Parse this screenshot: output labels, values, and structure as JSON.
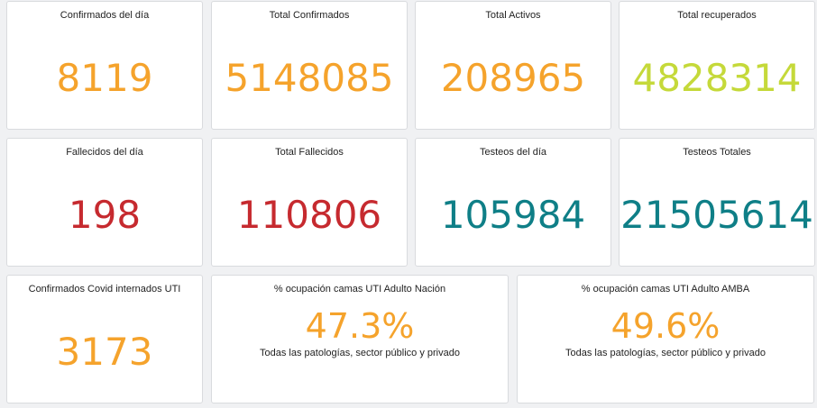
{
  "cards": [
    {
      "title": "Confirmados del día",
      "value": "8119",
      "color": "#f5a32c"
    },
    {
      "title": "Total Confirmados",
      "value": "5148085",
      "color": "#f5a32c"
    },
    {
      "title": "Total Activos",
      "value": "208965",
      "color": "#f5a32c"
    },
    {
      "title": "Total recuperados",
      "value": "4828314",
      "color": "#c5d93a"
    },
    {
      "title": "Fallecidos del día",
      "value": "198",
      "color": "#c62a2f"
    },
    {
      "title": "Total Fallecidos",
      "value": "110806",
      "color": "#c62a2f"
    },
    {
      "title": "Testeos del día",
      "value": "105984",
      "color": "#0f7f87"
    },
    {
      "title": "Testeos Totales",
      "value": "21505614",
      "color": "#0f7f87"
    },
    {
      "title": "Confirmados Covid internados UTI",
      "value": "3173",
      "color": "#f5a32c"
    },
    {
      "title": "% ocupación camas UTI Adulto Nación",
      "value": "47.3%",
      "subtitle": "Todas las patologías, sector público y privado",
      "color": "#f5a32c"
    },
    {
      "title": "% ocupación camas UTI Adulto AMBA",
      "value": "49.6%",
      "subtitle": "Todas las patologías, sector público y privado",
      "color": "#f5a32c"
    }
  ]
}
